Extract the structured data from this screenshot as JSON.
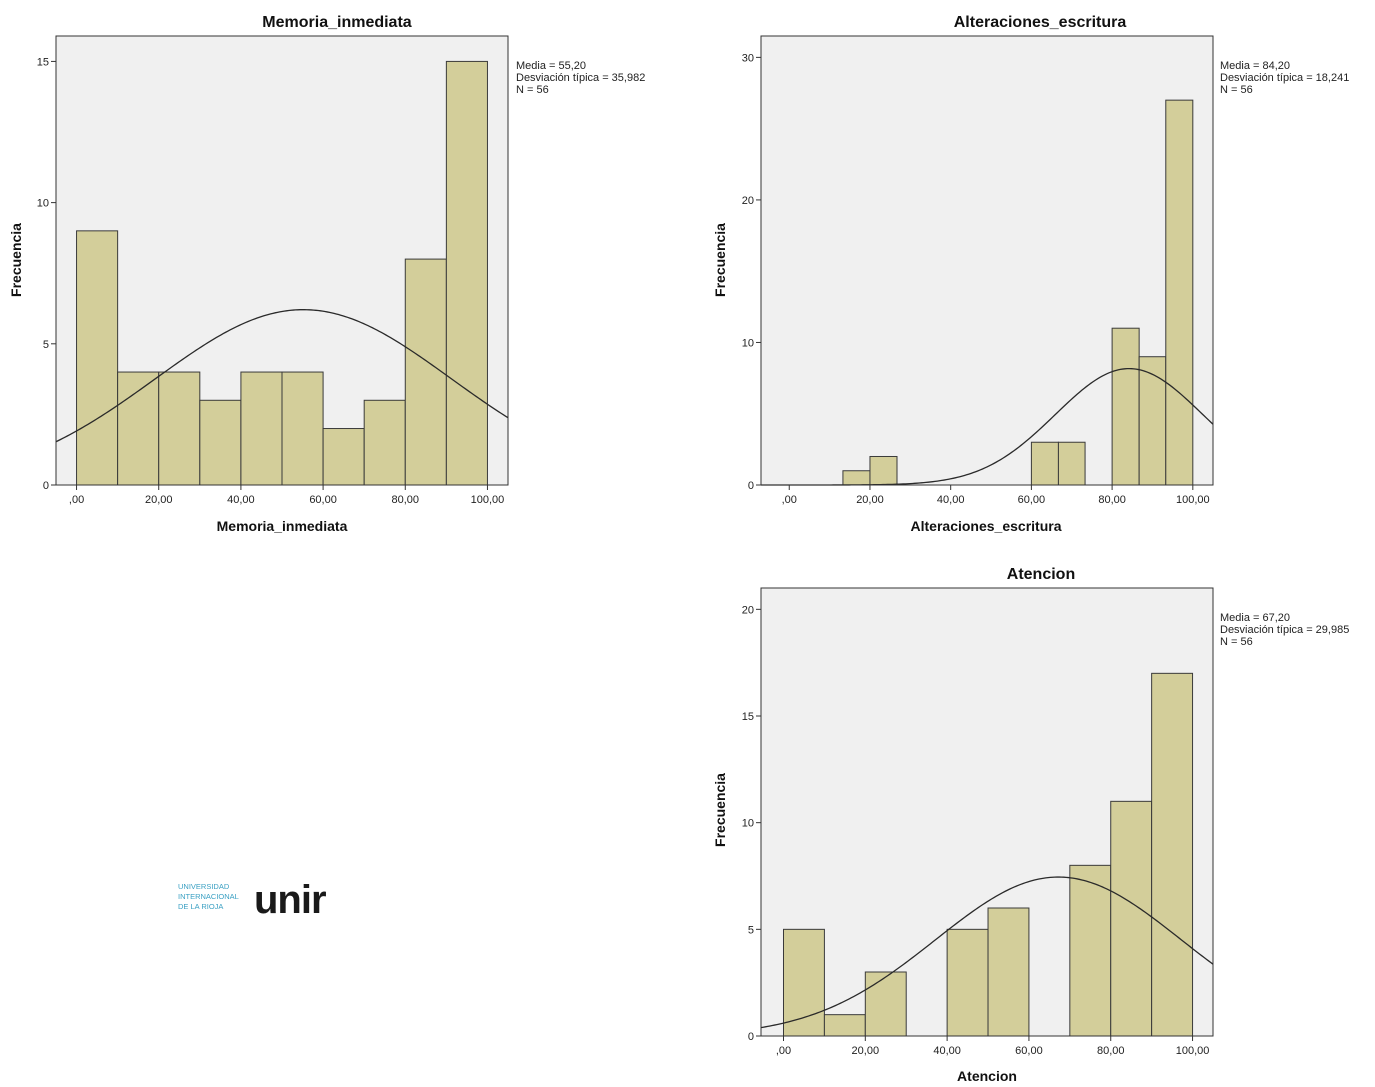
{
  "chart_data": [
    {
      "type": "bar",
      "title": "Memoria_inmediata",
      "xlabel": "Memoria_inmediata",
      "ylabel": "Frecuencia",
      "xlim": [
        -5,
        105
      ],
      "ylim": [
        0,
        15.9
      ],
      "xticks": [
        0,
        20,
        40,
        60,
        80,
        100
      ],
      "xtick_labels": [
        ",00",
        "20,00",
        "40,00",
        "60,00",
        "80,00",
        "100,00"
      ],
      "yticks": [
        0,
        5,
        10,
        15
      ],
      "ytick_labels": [
        "0",
        "5",
        "10",
        "15"
      ],
      "bins": [
        {
          "x0": 0,
          "x1": 10,
          "count": 9
        },
        {
          "x0": 10,
          "x1": 20,
          "count": 4
        },
        {
          "x0": 20,
          "x1": 30,
          "count": 4
        },
        {
          "x0": 30,
          "x1": 40,
          "count": 3
        },
        {
          "x0": 40,
          "x1": 50,
          "count": 4
        },
        {
          "x0": 50,
          "x1": 60,
          "count": 4
        },
        {
          "x0": 60,
          "x1": 70,
          "count": 2
        },
        {
          "x0": 70,
          "x1": 80,
          "count": 3
        },
        {
          "x0": 80,
          "x1": 90,
          "count": 8
        },
        {
          "x0": 90,
          "x1": 100,
          "count": 15
        }
      ],
      "normal_curve": {
        "mean": 55.2,
        "sd": 35.982,
        "n": 56,
        "bin_width": 10
      },
      "stats": [
        "Media = 55,20",
        "Desviación típica = 35,982",
        "N = 56"
      ],
      "grid": false
    },
    {
      "type": "bar",
      "title": "Alteraciones_escritura",
      "xlabel": "Alteraciones_escritura",
      "ylabel": "Frecuencia",
      "xlim": [
        -7,
        105
      ],
      "ylim": [
        0,
        31.5
      ],
      "xticks": [
        0,
        20,
        40,
        60,
        80,
        100
      ],
      "xtick_labels": [
        ",00",
        "20,00",
        "40,00",
        "60,00",
        "80,00",
        "100,00"
      ],
      "yticks": [
        0,
        10,
        20,
        30
      ],
      "ytick_labels": [
        "0",
        "10",
        "20",
        "30"
      ],
      "bins": [
        {
          "x0": 13.3,
          "x1": 20,
          "count": 1
        },
        {
          "x0": 20,
          "x1": 26.7,
          "count": 2
        },
        {
          "x0": 60,
          "x1": 66.7,
          "count": 3
        },
        {
          "x0": 66.7,
          "x1": 73.3,
          "count": 3
        },
        {
          "x0": 80,
          "x1": 86.7,
          "count": 11
        },
        {
          "x0": 86.7,
          "x1": 93.3,
          "count": 9
        },
        {
          "x0": 93.3,
          "x1": 100,
          "count": 27
        }
      ],
      "normal_curve": {
        "mean": 84.2,
        "sd": 18.241,
        "n": 56,
        "bin_width": 6.667
      },
      "stats": [
        "Media = 84,20",
        "Desviación típica = 18,241",
        "N = 56"
      ],
      "grid": false
    },
    {
      "type": "bar",
      "title": "Atencion",
      "xlabel": "Atencion",
      "ylabel": "Frecuencia",
      "xlim": [
        -5.5,
        105
      ],
      "ylim": [
        0,
        21
      ],
      "xticks": [
        0,
        20,
        40,
        60,
        80,
        100
      ],
      "xtick_labels": [
        ",00",
        "20,00",
        "40,00",
        "60,00",
        "80,00",
        "100,00"
      ],
      "yticks": [
        0,
        5,
        10,
        15,
        20
      ],
      "ytick_labels": [
        "0",
        "5",
        "10",
        "15",
        "20"
      ],
      "bins": [
        {
          "x0": 0,
          "x1": 10,
          "count": 5
        },
        {
          "x0": 10,
          "x1": 20,
          "count": 1
        },
        {
          "x0": 20,
          "x1": 30,
          "count": 3
        },
        {
          "x0": 40,
          "x1": 50,
          "count": 5
        },
        {
          "x0": 50,
          "x1": 60,
          "count": 6
        },
        {
          "x0": 70,
          "x1": 80,
          "count": 8
        },
        {
          "x0": 80,
          "x1": 90,
          "count": 11
        },
        {
          "x0": 90,
          "x1": 100,
          "count": 17
        }
      ],
      "normal_curve": {
        "mean": 67.2,
        "sd": 29.985,
        "n": 56,
        "bin_width": 10
      },
      "stats": [
        "Media = 67,20",
        "Desviación típica = 29,985",
        "N = 56"
      ],
      "grid": false
    }
  ],
  "colors": {
    "bar_fill": "#d3ce9a",
    "bar_stroke": "#3a3a3a",
    "plot_background": "#f0f0f0",
    "curve": "#2a2a2a",
    "logo_small_text": "#3aa0c3",
    "logo_mark": "#1a1a1a"
  },
  "logo": {
    "line1": "UNIVERSIDAD",
    "line2": "INTERNACIONAL",
    "line3": "DE LA RIOJA",
    "mark": "unir"
  }
}
